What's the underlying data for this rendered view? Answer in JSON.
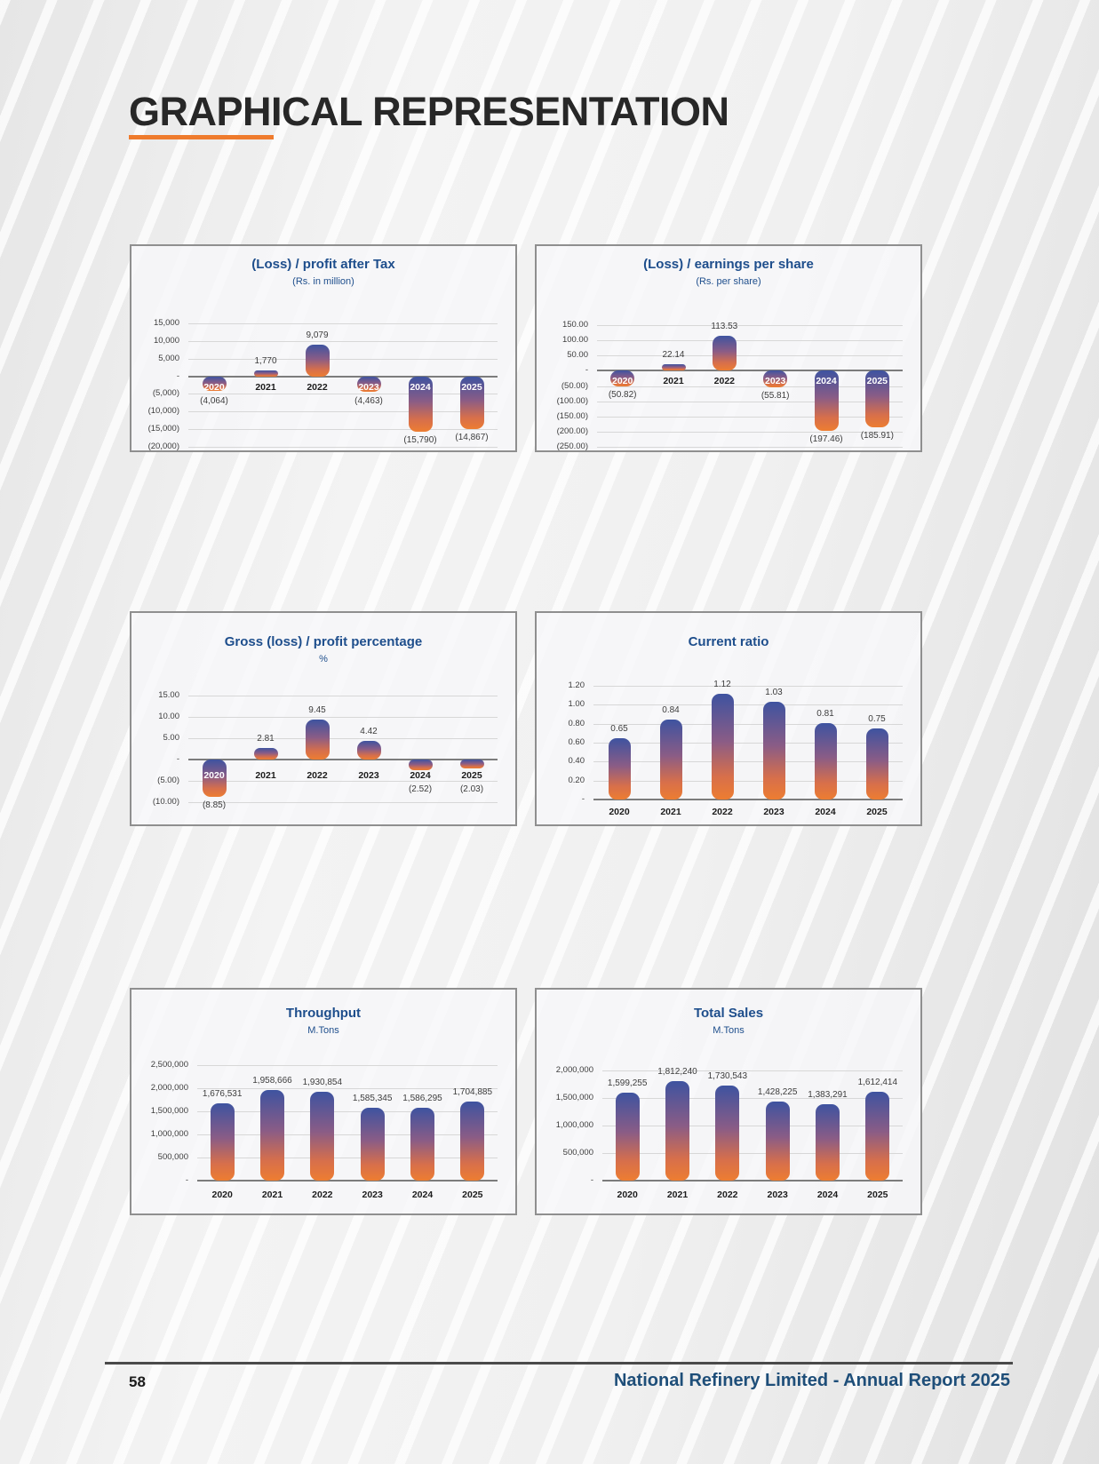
{
  "page": {
    "title": "GRAPHICAL REPRESENTATION",
    "accent_orange": "#ef7b2d",
    "accent_blue": "#1e4e8c",
    "footer": {
      "page_number": "58",
      "report_title": "National Refinery Limited - Annual Report 2025"
    }
  },
  "bar_style": {
    "gradient_top": "#3e53a0",
    "gradient_bottom": "#ed7d31"
  },
  "chart_data": [
    {
      "type": "bar",
      "title": "(Loss) / profit after Tax",
      "subtitle": "(Rs. in million)",
      "categories": [
        "2020",
        "2021",
        "2022",
        "2023",
        "2024",
        "2025"
      ],
      "values": [
        -4064,
        1770,
        9079,
        -4463,
        -15790,
        -14867
      ],
      "value_labels": [
        "(4,064)",
        "1,770",
        "9,079",
        "(4,463)",
        "(15,790)",
        "(14,867)"
      ],
      "tick_labels": [
        "15,000",
        "10,000",
        "5,000",
        "-",
        "(5,000)",
        "(10,000)",
        "(15,000)",
        "(20,000)"
      ],
      "tick_values": [
        15000,
        10000,
        5000,
        0,
        -5000,
        -10000,
        -15000,
        -20000
      ],
      "ylim": [
        -20000,
        15000
      ],
      "grid": true,
      "legend": "none",
      "year_label_on_bar": [
        true,
        false,
        false,
        true,
        true,
        true
      ]
    },
    {
      "type": "bar",
      "title": "(Loss) / earnings per share",
      "subtitle": "(Rs. per share)",
      "categories": [
        "2020",
        "2021",
        "2022",
        "2023",
        "2024",
        "2025"
      ],
      "values": [
        -50.82,
        22.14,
        113.53,
        -55.81,
        -197.46,
        -185.91
      ],
      "value_labels": [
        "(50.82)",
        "22.14",
        "113.53",
        "(55.81)",
        "(197.46)",
        "(185.91)"
      ],
      "tick_labels": [
        "150.00",
        "100.00",
        "50.00",
        "-",
        "(50.00)",
        "(100.00)",
        "(150.00)",
        "(200.00)",
        "(250.00)"
      ],
      "tick_values": [
        150,
        100,
        50,
        0,
        -50,
        -100,
        -150,
        -200,
        -250
      ],
      "ylim": [
        -250,
        150
      ],
      "grid": true,
      "legend": "none",
      "year_label_on_bar": [
        true,
        false,
        false,
        true,
        true,
        true
      ]
    },
    {
      "type": "bar",
      "title": "Gross (loss) / profit percentage",
      "subtitle": "%",
      "categories": [
        "2020",
        "2021",
        "2022",
        "2023",
        "2024",
        "2025"
      ],
      "values": [
        -8.85,
        2.81,
        9.45,
        4.42,
        -2.52,
        -2.03
      ],
      "value_labels": [
        "(8.85)",
        "2.81",
        "9.45",
        "4.42",
        "(2.52)",
        "(2.03)"
      ],
      "tick_labels": [
        "15.00",
        "10.00",
        "5.00",
        "-",
        "(5.00)",
        "(10.00)"
      ],
      "tick_values": [
        15,
        10,
        5,
        0,
        -5,
        -10
      ],
      "ylim": [
        -10,
        15
      ],
      "grid": true,
      "legend": "none",
      "year_label_on_bar": [
        true,
        false,
        false,
        false,
        false,
        false
      ]
    },
    {
      "type": "bar",
      "title": "Current ratio",
      "subtitle": "",
      "categories": [
        "2020",
        "2021",
        "2022",
        "2023",
        "2024",
        "2025"
      ],
      "values": [
        0.65,
        0.84,
        1.12,
        1.03,
        0.81,
        0.75
      ],
      "value_labels": [
        "0.65",
        "0.84",
        "1.12",
        "1.03",
        "0.81",
        "0.75"
      ],
      "tick_labels": [
        "1.20",
        "1.00",
        "0.80",
        "0.60",
        "0.40",
        "0.20",
        "-"
      ],
      "tick_values": [
        1.2,
        1.0,
        0.8,
        0.6,
        0.4,
        0.2,
        0
      ],
      "ylim": [
        0,
        1.2
      ],
      "grid": true,
      "legend": "none",
      "year_label_on_bar": [
        false,
        false,
        false,
        false,
        false,
        false
      ]
    },
    {
      "type": "bar",
      "title": "Throughput",
      "subtitle": "M.Tons",
      "categories": [
        "2020",
        "2021",
        "2022",
        "2023",
        "2024",
        "2025"
      ],
      "values": [
        1676531,
        1958666,
        1930854,
        1585345,
        1586295,
        1704885
      ],
      "value_labels": [
        "1,676,531",
        "1,958,666",
        "1,930,854",
        "1,585,345",
        "1,586,295",
        "1,704,885"
      ],
      "tick_labels": [
        "2,500,000",
        "2,000,000",
        "1,500,000",
        "1,000,000",
        "500,000",
        "-"
      ],
      "tick_values": [
        2500000,
        2000000,
        1500000,
        1000000,
        500000,
        0
      ],
      "ylim": [
        0,
        2500000
      ],
      "grid": true,
      "legend": "none",
      "year_label_on_bar": [
        false,
        false,
        false,
        false,
        false,
        false
      ]
    },
    {
      "type": "bar",
      "title": "Total Sales",
      "subtitle": "M.Tons",
      "categories": [
        "2020",
        "2021",
        "2022",
        "2023",
        "2024",
        "2025"
      ],
      "values": [
        1599255,
        1812240,
        1730543,
        1428225,
        1383291,
        1612414
      ],
      "value_labels": [
        "1,599,255",
        "1,812,240",
        "1,730,543",
        "1,428,225",
        "1,383,291",
        "1,612,414"
      ],
      "tick_labels": [
        "2,000,000",
        "1,500,000",
        "1,000,000",
        "500,000",
        "-"
      ],
      "tick_values": [
        2000000,
        1500000,
        1000000,
        500000,
        0
      ],
      "ylim": [
        0,
        2000000
      ],
      "grid": true,
      "legend": "none",
      "year_label_on_bar": [
        false,
        false,
        false,
        false,
        false,
        false
      ]
    }
  ]
}
